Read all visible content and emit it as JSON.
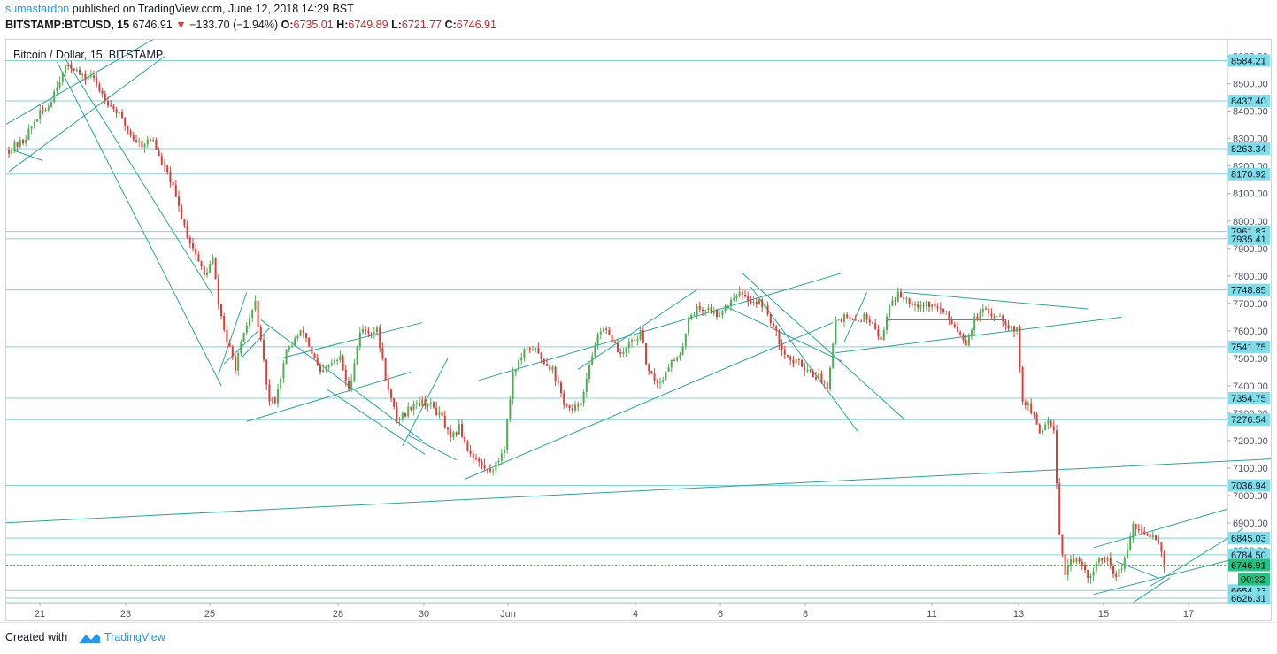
{
  "header": {
    "author": "sumastardon",
    "published_text": " published on TradingView.com, June 12, 2018 14:29 BST",
    "symbol": "BITSTAMP:BTCUSD, 15",
    "last_price": "6746.91",
    "change": "−133.70 (−1.94%)",
    "o_label": "O:",
    "o_value": "6735.01",
    "h_label": "H:",
    "h_value": "6749.89",
    "l_label": "L:",
    "l_value": "6721.77",
    "c_label": "C:",
    "c_value": "6746.91"
  },
  "footer": {
    "created_with": "Created with",
    "brand": "TradingView"
  },
  "colors": {
    "up": "#4caf50",
    "down": "#e53935",
    "trendline": "#26a69a",
    "hline": "#7fd3d9",
    "price_tag_bg": "#80deea",
    "last_tag_bg": "#26c281"
  },
  "chart_data": {
    "type": "candlestick",
    "title": "Bitcoin / Dollar, 15, BITSTAMP",
    "timeframe": "15",
    "ylim": [
      6610,
      8660
    ],
    "y_ticks": [
      6800,
      6900,
      7000,
      7100,
      7200,
      7300,
      7400,
      7500,
      7600,
      7700,
      7800,
      7900,
      8000,
      8100,
      8200,
      8300,
      8400,
      8500,
      8600
    ],
    "x_ticks": [
      "21",
      "23",
      "25",
      "28",
      "30",
      "Jun",
      "4",
      "6",
      "8",
      "11",
      "13",
      "15",
      "17"
    ],
    "horizontal_levels": [
      8584.21,
      8437.4,
      8263.34,
      8170.92,
      7961.83,
      7935.41,
      7748.85,
      7541.75,
      7354.75,
      7276.54,
      7036.94,
      6845.03,
      6784.5,
      6654.23,
      6626.31
    ],
    "last_price": 6746.91,
    "countdown": "00:32",
    "price_path": [
      [
        0,
        8260
      ],
      [
        5,
        8290
      ],
      [
        10,
        8380
      ],
      [
        14,
        8420
      ],
      [
        17,
        8500
      ],
      [
        21,
        8570
      ],
      [
        23,
        8560
      ],
      [
        26,
        8520
      ],
      [
        29,
        8530
      ],
      [
        32,
        8480
      ],
      [
        36,
        8420
      ],
      [
        38,
        8400
      ],
      [
        41,
        8350
      ],
      [
        44,
        8300
      ],
      [
        47,
        8280
      ],
      [
        51,
        8300
      ],
      [
        53,
        8230
      ],
      [
        57,
        8150
      ],
      [
        60,
        8050
      ],
      [
        63,
        7950
      ],
      [
        66,
        7880
      ],
      [
        69,
        7800
      ],
      [
        72,
        7860
      ],
      [
        74,
        7700
      ],
      [
        77,
        7560
      ],
      [
        80,
        7470
      ],
      [
        84,
        7620
      ],
      [
        87,
        7700
      ],
      [
        90,
        7480
      ],
      [
        92,
        7340
      ],
      [
        94,
        7350
      ],
      [
        98,
        7520
      ],
      [
        101,
        7570
      ],
      [
        104,
        7600
      ],
      [
        107,
        7520
      ],
      [
        110,
        7440
      ],
      [
        114,
        7480
      ],
      [
        117,
        7500
      ],
      [
        120,
        7380
      ],
      [
        124,
        7600
      ],
      [
        127,
        7600
      ],
      [
        130,
        7600
      ],
      [
        134,
        7380
      ],
      [
        137,
        7280
      ],
      [
        140,
        7300
      ],
      [
        143,
        7340
      ],
      [
        147,
        7340
      ],
      [
        150,
        7320
      ],
      [
        153,
        7280
      ],
      [
        156,
        7200
      ],
      [
        159,
        7250
      ],
      [
        162,
        7170
      ],
      [
        166,
        7120
      ],
      [
        169,
        7090
      ],
      [
        172,
        7110
      ],
      [
        175,
        7180
      ],
      [
        178,
        7450
      ],
      [
        182,
        7520
      ],
      [
        185,
        7540
      ],
      [
        188,
        7500
      ],
      [
        192,
        7460
      ],
      [
        196,
        7340
      ],
      [
        199,
        7300
      ],
      [
        203,
        7370
      ],
      [
        207,
        7560
      ],
      [
        210,
        7600
      ],
      [
        213,
        7570
      ],
      [
        216,
        7510
      ],
      [
        220,
        7560
      ],
      [
        223,
        7590
      ],
      [
        226,
        7440
      ],
      [
        230,
        7410
      ],
      [
        233,
        7480
      ],
      [
        237,
        7500
      ],
      [
        240,
        7650
      ],
      [
        243,
        7680
      ],
      [
        247,
        7680
      ],
      [
        250,
        7660
      ],
      [
        254,
        7700
      ],
      [
        257,
        7740
      ],
      [
        260,
        7720
      ],
      [
        263,
        7710
      ],
      [
        266,
        7700
      ],
      [
        269,
        7640
      ],
      [
        272,
        7560
      ],
      [
        276,
        7490
      ],
      [
        280,
        7480
      ],
      [
        283,
        7450
      ],
      [
        286,
        7430
      ],
      [
        289,
        7400
      ],
      [
        292,
        7640
      ],
      [
        295,
        7650
      ],
      [
        298,
        7630
      ],
      [
        302,
        7650
      ],
      [
        305,
        7640
      ],
      [
        308,
        7560
      ],
      [
        311,
        7700
      ],
      [
        314,
        7730
      ],
      [
        317,
        7720
      ],
      [
        320,
        7700
      ],
      [
        324,
        7700
      ],
      [
        327,
        7690
      ],
      [
        330,
        7670
      ],
      [
        334,
        7620
      ],
      [
        338,
        7560
      ],
      [
        341,
        7640
      ],
      [
        344,
        7670
      ],
      [
        347,
        7660
      ],
      [
        350,
        7660
      ],
      [
        353,
        7620
      ],
      [
        356,
        7600
      ],
      [
        358,
        7350
      ],
      [
        361,
        7310
      ],
      [
        364,
        7230
      ],
      [
        367,
        7280
      ],
      [
        369,
        7250
      ],
      [
        371,
        6860
      ],
      [
        373,
        6720
      ],
      [
        376,
        6770
      ],
      [
        379,
        6740
      ],
      [
        382,
        6700
      ],
      [
        385,
        6770
      ],
      [
        388,
        6760
      ],
      [
        391,
        6700
      ],
      [
        394,
        6760
      ],
      [
        397,
        6890
      ],
      [
        400,
        6860
      ],
      [
        403,
        6860
      ],
      [
        406,
        6840
      ],
      [
        408,
        6747
      ]
    ],
    "trendlines": [
      [
        [
          -3,
          8340
        ],
        [
          54,
          8680
        ]
      ],
      [
        [
          0,
          8180
        ],
        [
          55,
          8600
        ]
      ],
      [
        [
          1,
          8260
        ],
        [
          12,
          8220
        ]
      ],
      [
        [
          20,
          8590
        ],
        [
          72,
          7730
        ]
      ],
      [
        [
          17,
          8580
        ],
        [
          75,
          7400
        ]
      ],
      [
        [
          74,
          7440
        ],
        [
          84,
          7740
        ]
      ],
      [
        [
          76,
          7480
        ],
        [
          88,
          7600
        ]
      ],
      [
        [
          82,
          7500
        ],
        [
          92,
          7610
        ]
      ],
      [
        [
          84,
          7270
        ],
        [
          142,
          7450
        ]
      ],
      [
        [
          96,
          7500
        ],
        [
          146,
          7630
        ]
      ],
      [
        [
          89,
          7640
        ],
        [
          146,
          7200
        ]
      ],
      [
        [
          112,
          7390
        ],
        [
          147,
          7150
        ]
      ],
      [
        [
          139,
          7180
        ],
        [
          155,
          7500
        ]
      ],
      [
        [
          141,
          7220
        ],
        [
          158,
          7130
        ]
      ],
      [
        [
          161,
          7060
        ],
        [
          291,
          7630
        ]
      ],
      [
        [
          166,
          7420
        ],
        [
          294,
          7810
        ]
      ],
      [
        [
          201,
          7460
        ],
        [
          243,
          7750
        ]
      ],
      [
        [
          253,
          7690
        ],
        [
          294,
          7490
        ]
      ],
      [
        [
          259,
          7810
        ],
        [
          316,
          7280
        ]
      ],
      [
        [
          262,
          7760
        ],
        [
          300,
          7230
        ]
      ],
      [
        [
          295,
          7560
        ],
        [
          303,
          7740
        ]
      ],
      [
        [
          292,
          7520
        ],
        [
          393,
          7650
        ]
      ],
      [
        [
          310,
          7640
        ],
        [
          352,
          7640
        ]
      ],
      [
        [
          316,
          7740
        ],
        [
          381,
          7680
        ]
      ],
      [
        [
          -3,
          6900
        ],
        [
          516,
          7170
        ]
      ],
      [
        [
          383,
          6810
        ],
        [
          430,
          6950
        ]
      ],
      [
        [
          383,
          6640
        ],
        [
          437,
          6780
        ]
      ],
      [
        [
          403,
          6670
        ],
        [
          436,
          6880
        ]
      ],
      [
        [
          397,
          6610
        ],
        [
          410,
          6700
        ]
      ],
      [
        [
          391,
          6760
        ],
        [
          406,
          6700
        ]
      ]
    ]
  }
}
